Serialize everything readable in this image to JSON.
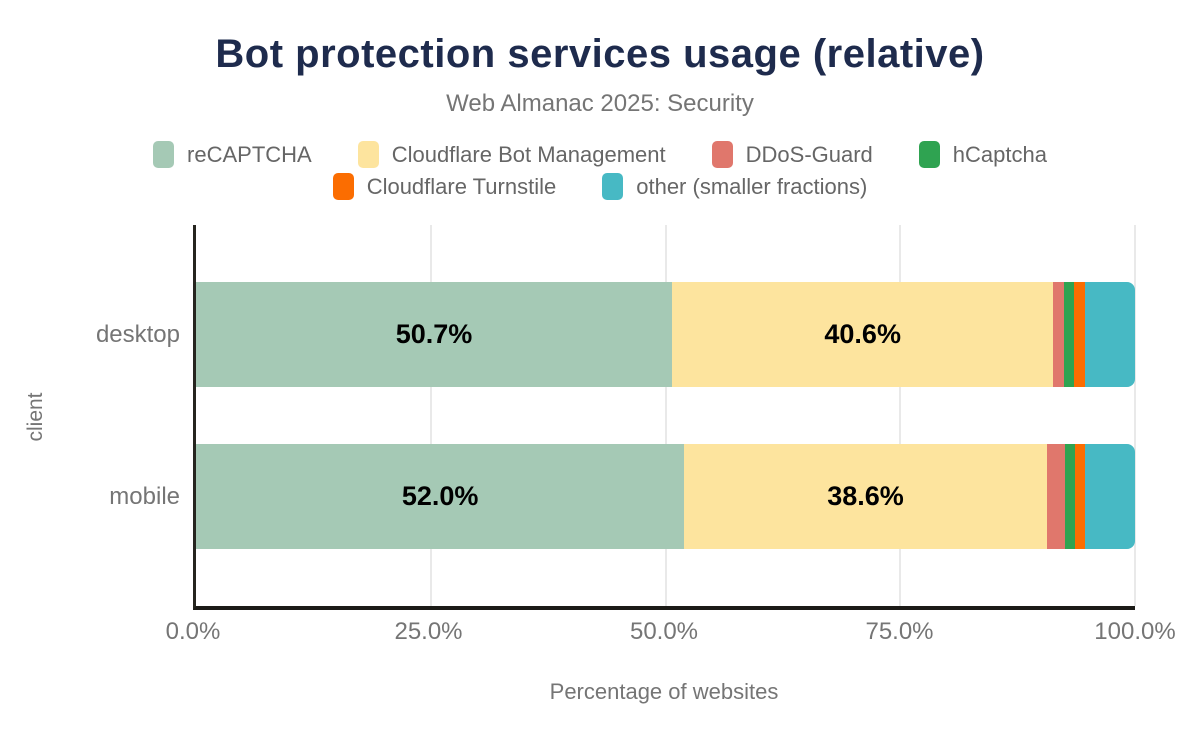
{
  "header": {
    "title": "Bot protection services usage (relative)",
    "subtitle": "Web Almanac 2025: Security"
  },
  "chart_data": {
    "type": "bar",
    "stacked": true,
    "orientation": "horizontal",
    "title": "Bot protection services usage (relative)",
    "subtitle": "Web Almanac 2025: Security",
    "xlabel": "Percentage of websites",
    "ylabel": "client",
    "categories": [
      "desktop",
      "mobile"
    ],
    "series": [
      {
        "name": "reCAPTCHA",
        "color": "#a5c9b5",
        "values": [
          50.7,
          52.0
        ]
      },
      {
        "name": "Cloudflare Bot Management",
        "color": "#fde49e",
        "values": [
          40.6,
          38.6
        ]
      },
      {
        "name": "DDoS-Guard",
        "color": "#e0776c",
        "values": [
          1.1,
          1.9
        ]
      },
      {
        "name": "hCaptcha",
        "color": "#2fa351",
        "values": [
          1.1,
          1.1
        ]
      },
      {
        "name": "Cloudflare Turnstile",
        "color": "#fb6d01",
        "values": [
          1.2,
          1.1
        ]
      },
      {
        "name": "other (smaller fractions)",
        "color": "#47b9c4",
        "values": [
          5.3,
          5.3
        ]
      }
    ],
    "bar_labels": [
      [
        "50.7%",
        "40.6%",
        "",
        "",
        "",
        ""
      ],
      [
        "52.0%",
        "38.6%",
        "",
        "",
        "",
        ""
      ]
    ],
    "xlim": [
      0,
      100
    ],
    "x_ticks": [
      "0.0%",
      "25.0%",
      "50.0%",
      "75.0%",
      "100.0%"
    ],
    "x_tick_values": [
      0,
      25,
      50,
      75,
      100
    ],
    "grid": "vertical",
    "legend_position": "top",
    "legend_rows": [
      [
        0,
        1,
        2,
        3
      ],
      [
        4,
        5
      ]
    ],
    "colors": {
      "title": "#1e2b4d",
      "subtitle_text": "#757575",
      "legend_text": "#666666",
      "axis_line": "#1c1b17",
      "gridline": "#e9e9e9",
      "bar_label_text": "#000000"
    }
  }
}
